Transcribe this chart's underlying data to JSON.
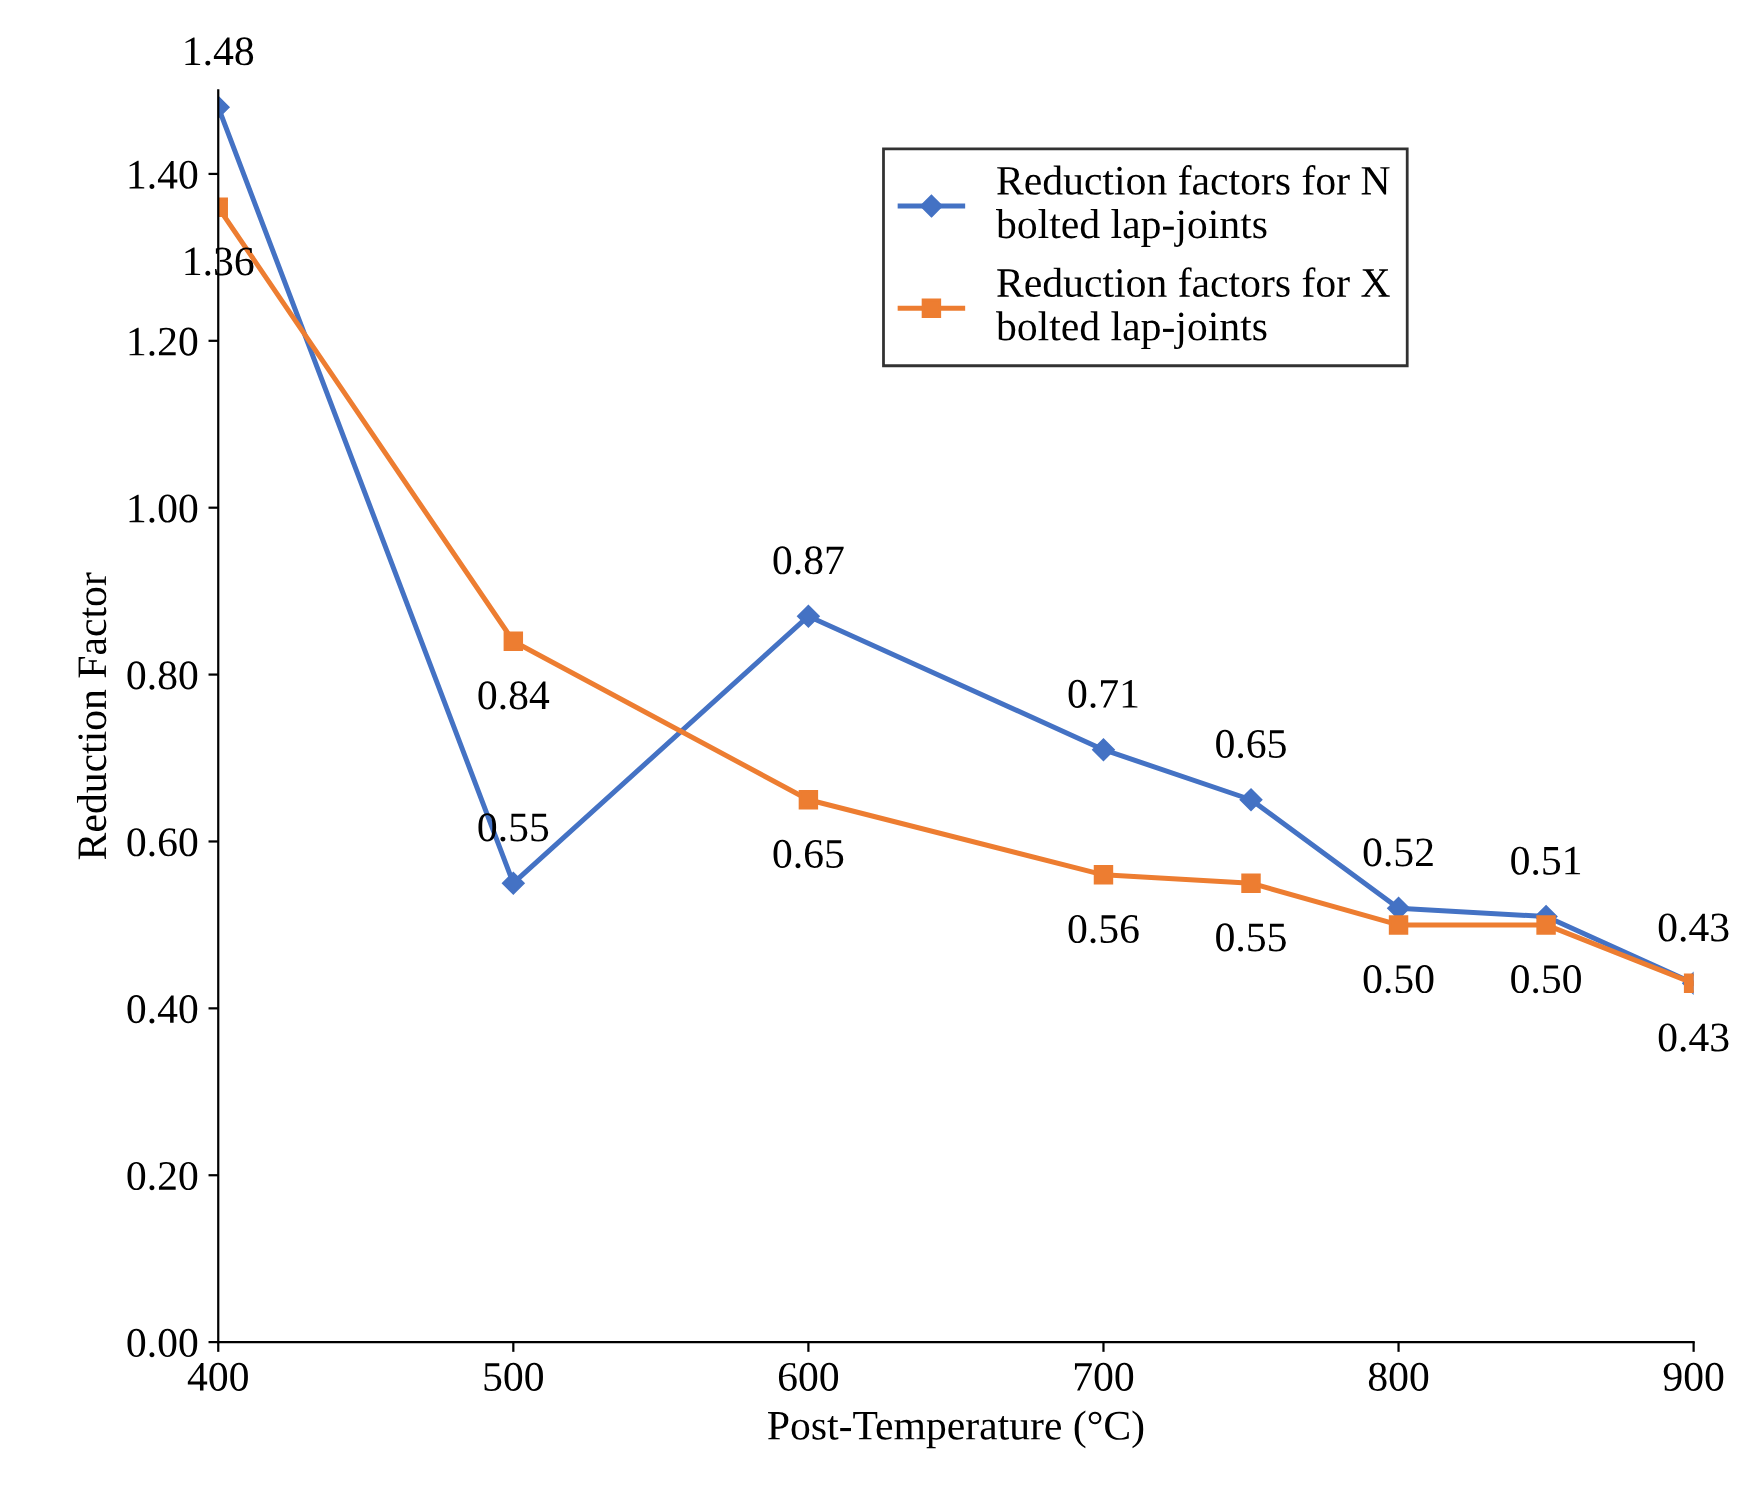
{
  "chart_data": {
    "type": "line",
    "xlabel": "Post-Temperature (°C)",
    "ylabel": "Reduction Factor",
    "x": [
      400,
      500,
      600,
      700,
      750,
      800,
      850,
      900
    ],
    "series": [
      {
        "name": "Reduction factors for N\nbolted lap-joints",
        "color": "#4472c4",
        "marker": "diamond",
        "values": [
          1.48,
          0.55,
          0.87,
          0.71,
          0.65,
          0.52,
          0.51,
          0.43
        ],
        "value_labels": [
          "1.48",
          "0.55",
          "0.87",
          "0.71",
          "0.65",
          "0.52",
          "0.51",
          "0.43"
        ]
      },
      {
        "name": "Reduction factors for X\nbolted lap-joints",
        "color": "#ed7d31",
        "marker": "square",
        "values": [
          1.36,
          0.84,
          0.65,
          0.56,
          0.55,
          0.5,
          0.5,
          0.43
        ],
        "value_labels": [
          "1.36",
          "0.84",
          "0.65",
          "0.56",
          "0.55",
          "0.50",
          "0.50",
          "0.43"
        ]
      }
    ],
    "xlim": [
      400,
      900
    ],
    "xticks": [
      400,
      500,
      600,
      700,
      800,
      900
    ],
    "ylim": [
      0,
      1.5
    ],
    "yticks": [
      {
        "value": 0,
        "label": "0.00"
      },
      {
        "value": 0.2,
        "label": "0.20"
      },
      {
        "value": 0.4,
        "label": "0.40"
      },
      {
        "value": 0.6,
        "label": "0.60"
      },
      {
        "value": 0.8,
        "label": "0.80"
      },
      {
        "value": 1.0,
        "label": "1.00"
      },
      {
        "value": 1.2,
        "label": "1.20"
      },
      {
        "value": 1.4,
        "label": "1.40"
      }
    ],
    "grid": false,
    "legend": "top right",
    "line_style": "solid"
  }
}
